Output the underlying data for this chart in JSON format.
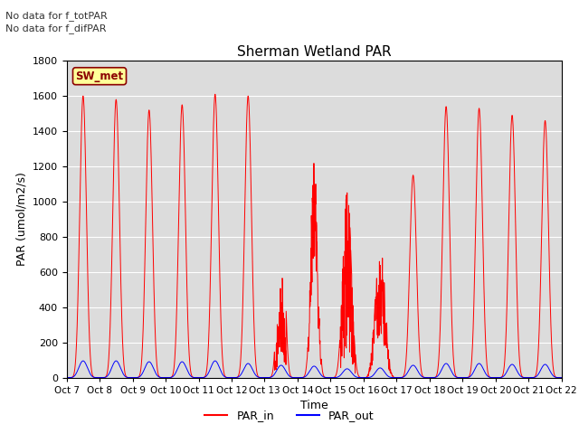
{
  "title": "Sherman Wetland PAR",
  "xlabel": "Time",
  "ylabel": "PAR (umol/m2/s)",
  "ylim": [
    0,
    1800
  ],
  "yticks": [
    0,
    200,
    400,
    600,
    800,
    1000,
    1200,
    1400,
    1600,
    1800
  ],
  "xtick_labels": [
    "Oct 7",
    "Oct 8",
    "Oct 9",
    "Oct 10",
    "Oct 11",
    "Oct 12",
    "Oct 13",
    "Oct 14",
    "Oct 15",
    "Oct 16",
    "Oct 17",
    "Oct 18",
    "Oct 19",
    "Oct 20",
    "Oct 21",
    "Oct 22"
  ],
  "text_no_data_1": "No data for f_totPAR",
  "text_no_data_2": "No data for f_difPAR",
  "station_label": "SW_met",
  "station_label_color": "#8B0000",
  "station_box_color": "#FFFF99",
  "par_in_color": "#FF0000",
  "par_out_color": "#0000FF",
  "background_color": "#DCDCDC",
  "n_days": 15,
  "n_points_per_day": 144
}
